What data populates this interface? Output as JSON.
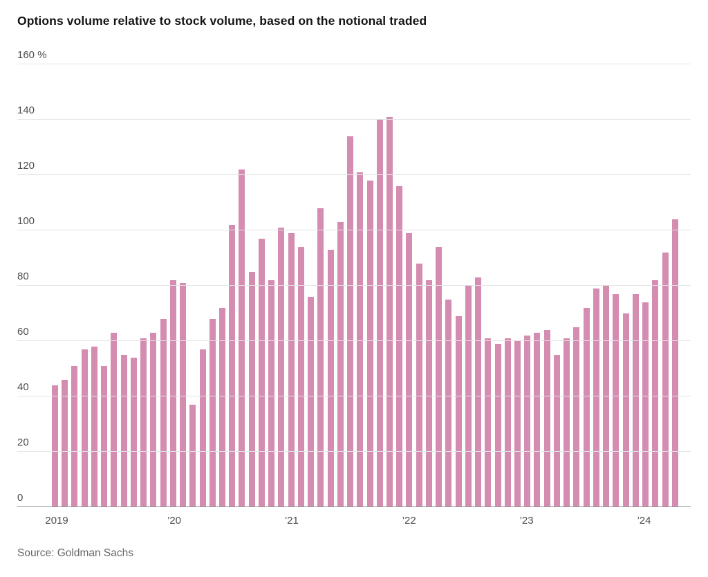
{
  "header": {
    "title": "Options volume relative to stock volume, based on the notional traded"
  },
  "footer": {
    "source": "Source: Goldman Sachs"
  },
  "chart_data": {
    "type": "bar",
    "title": "Options volume relative to stock volume, based on the notional traded",
    "xlabel": "",
    "ylabel": "",
    "unit": "%",
    "ylim": [
      0,
      160
    ],
    "grid": true,
    "legend_position": "none",
    "bar_color": "#d48cb0",
    "grid_color": "#e4e4e4",
    "baseline_color": "#9a9a9a",
    "y_ticks": [
      {
        "value": 0,
        "label": "0"
      },
      {
        "value": 20,
        "label": "20"
      },
      {
        "value": 40,
        "label": "40"
      },
      {
        "value": 60,
        "label": "60"
      },
      {
        "value": 80,
        "label": "80"
      },
      {
        "value": 100,
        "label": "100"
      },
      {
        "value": 120,
        "label": "120"
      },
      {
        "value": 140,
        "label": "140"
      },
      {
        "value": 160,
        "label": "160 %"
      }
    ],
    "x_year_ticks": [
      {
        "index": 0,
        "label": "2019"
      },
      {
        "index": 12,
        "label": "’20"
      },
      {
        "index": 24,
        "label": "’21"
      },
      {
        "index": 36,
        "label": "’22"
      },
      {
        "index": 48,
        "label": "’23"
      },
      {
        "index": 60,
        "label": "’24"
      }
    ],
    "series": [
      {
        "name": "Options volume relative to stock volume (%)",
        "x": [
          "2019-01",
          "2019-02",
          "2019-03",
          "2019-04",
          "2019-05",
          "2019-06",
          "2019-07",
          "2019-08",
          "2019-09",
          "2019-10",
          "2019-11",
          "2019-12",
          "2020-01",
          "2020-02",
          "2020-03",
          "2020-04",
          "2020-05",
          "2020-06",
          "2020-07",
          "2020-08",
          "2020-09",
          "2020-10",
          "2020-11",
          "2020-12",
          "2021-01",
          "2021-02",
          "2021-03",
          "2021-04",
          "2021-05",
          "2021-06",
          "2021-07",
          "2021-08",
          "2021-09",
          "2021-10",
          "2021-11",
          "2021-12",
          "2022-01",
          "2022-02",
          "2022-03",
          "2022-04",
          "2022-05",
          "2022-06",
          "2022-07",
          "2022-08",
          "2022-09",
          "2022-10",
          "2022-11",
          "2022-12",
          "2023-01",
          "2023-02",
          "2023-03",
          "2023-04",
          "2023-05",
          "2023-06",
          "2023-07",
          "2023-08",
          "2023-09",
          "2023-10",
          "2023-11",
          "2023-12",
          "2024-01",
          "2024-02",
          "2024-03",
          "2024-04"
        ],
        "values": [
          44,
          46,
          51,
          57,
          58,
          51,
          63,
          55,
          54,
          61,
          63,
          68,
          82,
          81,
          37,
          57,
          68,
          72,
          102,
          122,
          85,
          97,
          82,
          101,
          99,
          94,
          76,
          108,
          93,
          103,
          134,
          121,
          118,
          140,
          141,
          116,
          99,
          88,
          82,
          94,
          75,
          69,
          80,
          83,
          61,
          59,
          61,
          60,
          62,
          63,
          64,
          55,
          61,
          65,
          72,
          79,
          80,
          77,
          70,
          77,
          74,
          82,
          92,
          104
        ]
      }
    ]
  }
}
